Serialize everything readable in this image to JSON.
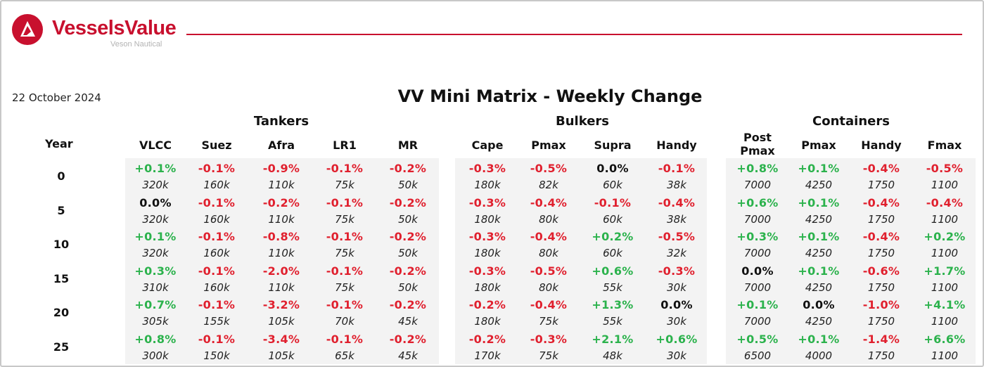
{
  "brand": {
    "name": "VesselsValue",
    "tagline": "Veson Nautical",
    "accent_color": "#c8102e"
  },
  "report": {
    "date": "22 October 2024",
    "title": "VV Mini Matrix - Weekly Change"
  },
  "colors": {
    "positive": "#2bb24c",
    "negative": "#e0202e",
    "neutral": "#111111",
    "panel": "#f3f3f3"
  },
  "year_header": "Year",
  "years": [
    "0",
    "5",
    "10",
    "15",
    "20",
    "25"
  ],
  "groups": [
    {
      "name": "Tankers",
      "columns": [
        {
          "label": "VLCC",
          "cells": [
            {
              "change": "+0.1%",
              "size": "320k"
            },
            {
              "change": "0.0%",
              "size": "320k"
            },
            {
              "change": "+0.1%",
              "size": "320k"
            },
            {
              "change": "+0.3%",
              "size": "310k"
            },
            {
              "change": "+0.7%",
              "size": "305k"
            },
            {
              "change": "+0.8%",
              "size": "300k"
            }
          ]
        },
        {
          "label": "Suez",
          "cells": [
            {
              "change": "-0.1%",
              "size": "160k"
            },
            {
              "change": "-0.1%",
              "size": "160k"
            },
            {
              "change": "-0.1%",
              "size": "160k"
            },
            {
              "change": "-0.1%",
              "size": "160k"
            },
            {
              "change": "-0.1%",
              "size": "155k"
            },
            {
              "change": "-0.1%",
              "size": "150k"
            }
          ]
        },
        {
          "label": "Afra",
          "cells": [
            {
              "change": "-0.9%",
              "size": "110k"
            },
            {
              "change": "-0.2%",
              "size": "110k"
            },
            {
              "change": "-0.8%",
              "size": "110k"
            },
            {
              "change": "-2.0%",
              "size": "110k"
            },
            {
              "change": "-3.2%",
              "size": "105k"
            },
            {
              "change": "-3.4%",
              "size": "105k"
            }
          ]
        },
        {
          "label": "LR1",
          "cells": [
            {
              "change": "-0.1%",
              "size": "75k"
            },
            {
              "change": "-0.1%",
              "size": "75k"
            },
            {
              "change": "-0.1%",
              "size": "75k"
            },
            {
              "change": "-0.1%",
              "size": "75k"
            },
            {
              "change": "-0.1%",
              "size": "70k"
            },
            {
              "change": "-0.1%",
              "size": "65k"
            }
          ]
        },
        {
          "label": "MR",
          "cells": [
            {
              "change": "-0.2%",
              "size": "50k"
            },
            {
              "change": "-0.2%",
              "size": "50k"
            },
            {
              "change": "-0.2%",
              "size": "50k"
            },
            {
              "change": "-0.2%",
              "size": "50k"
            },
            {
              "change": "-0.2%",
              "size": "45k"
            },
            {
              "change": "-0.2%",
              "size": "45k"
            }
          ]
        }
      ]
    },
    {
      "name": "Bulkers",
      "columns": [
        {
          "label": "Cape",
          "cells": [
            {
              "change": "-0.3%",
              "size": "180k"
            },
            {
              "change": "-0.3%",
              "size": "180k"
            },
            {
              "change": "-0.3%",
              "size": "180k"
            },
            {
              "change": "-0.3%",
              "size": "180k"
            },
            {
              "change": "-0.2%",
              "size": "180k"
            },
            {
              "change": "-0.2%",
              "size": "170k"
            }
          ]
        },
        {
          "label": "Pmax",
          "cells": [
            {
              "change": "-0.5%",
              "size": "82k"
            },
            {
              "change": "-0.4%",
              "size": "80k"
            },
            {
              "change": "-0.4%",
              "size": "80k"
            },
            {
              "change": "-0.5%",
              "size": "80k"
            },
            {
              "change": "-0.4%",
              "size": "75k"
            },
            {
              "change": "-0.3%",
              "size": "75k"
            }
          ]
        },
        {
          "label": "Supra",
          "cells": [
            {
              "change": "0.0%",
              "size": "60k"
            },
            {
              "change": "-0.1%",
              "size": "60k"
            },
            {
              "change": "+0.2%",
              "size": "60k"
            },
            {
              "change": "+0.6%",
              "size": "55k"
            },
            {
              "change": "+1.3%",
              "size": "55k"
            },
            {
              "change": "+2.1%",
              "size": "48k"
            }
          ]
        },
        {
          "label": "Handy",
          "cells": [
            {
              "change": "-0.1%",
              "size": "38k"
            },
            {
              "change": "-0.4%",
              "size": "38k"
            },
            {
              "change": "-0.5%",
              "size": "32k"
            },
            {
              "change": "-0.3%",
              "size": "30k"
            },
            {
              "change": "0.0%",
              "size": "30k"
            },
            {
              "change": "+0.6%",
              "size": "30k"
            }
          ]
        }
      ]
    },
    {
      "name": "Containers",
      "columns": [
        {
          "label": "Post\nPmax",
          "cells": [
            {
              "change": "+0.8%",
              "size": "7000"
            },
            {
              "change": "+0.6%",
              "size": "7000"
            },
            {
              "change": "+0.3%",
              "size": "7000"
            },
            {
              "change": "0.0%",
              "size": "7000"
            },
            {
              "change": "+0.1%",
              "size": "7000"
            },
            {
              "change": "+0.5%",
              "size": "6500"
            }
          ]
        },
        {
          "label": "Pmax",
          "cells": [
            {
              "change": "+0.1%",
              "size": "4250"
            },
            {
              "change": "+0.1%",
              "size": "4250"
            },
            {
              "change": "+0.1%",
              "size": "4250"
            },
            {
              "change": "+0.1%",
              "size": "4250"
            },
            {
              "change": "0.0%",
              "size": "4250"
            },
            {
              "change": "+0.1%",
              "size": "4000"
            }
          ]
        },
        {
          "label": "Handy",
          "cells": [
            {
              "change": "-0.4%",
              "size": "1750"
            },
            {
              "change": "-0.4%",
              "size": "1750"
            },
            {
              "change": "-0.4%",
              "size": "1750"
            },
            {
              "change": "-0.6%",
              "size": "1750"
            },
            {
              "change": "-1.0%",
              "size": "1750"
            },
            {
              "change": "-1.4%",
              "size": "1750"
            }
          ]
        },
        {
          "label": "Fmax",
          "cells": [
            {
              "change": "-0.5%",
              "size": "1100"
            },
            {
              "change": "-0.4%",
              "size": "1100"
            },
            {
              "change": "+0.2%",
              "size": "1100"
            },
            {
              "change": "+1.7%",
              "size": "1100"
            },
            {
              "change": "+4.1%",
              "size": "1100"
            },
            {
              "change": "+6.6%",
              "size": "1100"
            }
          ]
        }
      ]
    }
  ]
}
